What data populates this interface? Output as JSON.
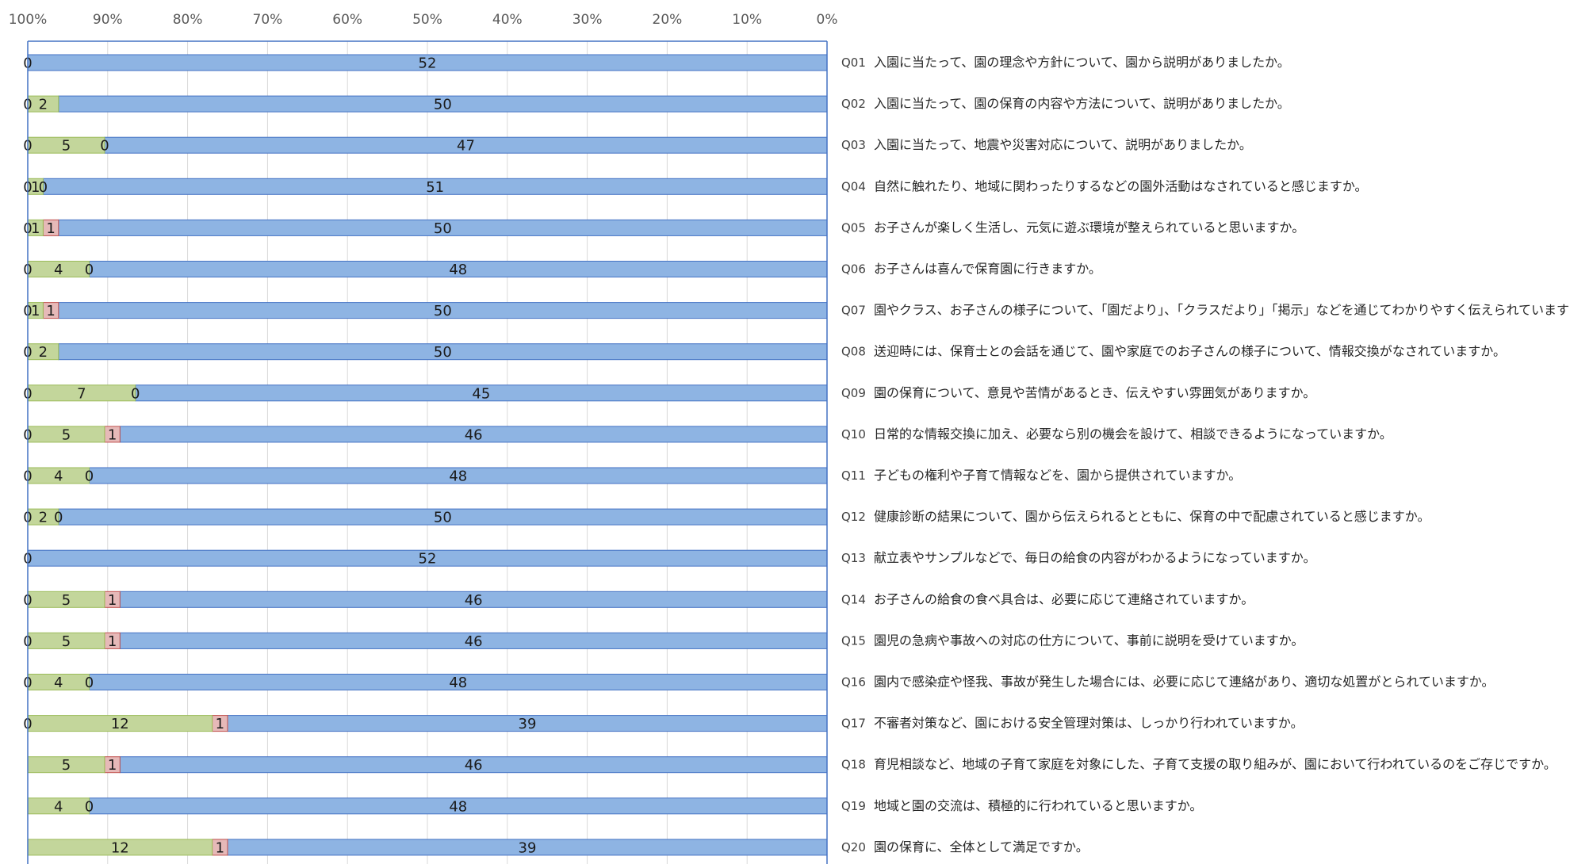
{
  "chart_data": {
    "type": "bar",
    "orientation": "horizontal",
    "stacked": "percent",
    "x_axis_reversed": true,
    "xlim": [
      0,
      100
    ],
    "x_ticks": [
      "100%",
      "90%",
      "80%",
      "70%",
      "60%",
      "50%",
      "40%",
      "30%",
      "20%",
      "10%",
      "0%"
    ],
    "grid": true,
    "legend": null,
    "categories": [
      {
        "id": "Q01",
        "text": "入園に当たって、園の理念や方針について、園から説明がありましたか。"
      },
      {
        "id": "Q02",
        "text": "入園に当たって、園の保育の内容や方法について、説明がありましたか。"
      },
      {
        "id": "Q03",
        "text": "入園に当たって、地震や災害対応について、説明がありましたか。"
      },
      {
        "id": "Q04",
        "text": "自然に触れたり、地域に関わったりするなどの園外活動はなされていると感じますか。"
      },
      {
        "id": "Q05",
        "text": "お子さんが楽しく生活し、元気に遊ぶ環境が整えられていると思いますか。"
      },
      {
        "id": "Q06",
        "text": "お子さんは喜んで保育園に行きますか。"
      },
      {
        "id": "Q07",
        "text": "園やクラス、お子さんの様子について、「園だより」、「クラスだより」「掲示」などを通じてわかりやすく伝えられていますか。"
      },
      {
        "id": "Q08",
        "text": "送迎時には、保育士との会話を通じて、園や家庭でのお子さんの様子について、情報交換がなされていますか。"
      },
      {
        "id": "Q09",
        "text": "園の保育について、意見や苦情があるとき、伝えやすい雰囲気がありますか。"
      },
      {
        "id": "Q10",
        "text": "日常的な情報交換に加え、必要なら別の機会を設けて、相談できるようになっていますか。"
      },
      {
        "id": "Q11",
        "text": "子どもの権利や子育て情報などを、園から提供されていますか。"
      },
      {
        "id": "Q12",
        "text": "健康診断の結果について、園から伝えられるとともに、保育の中で配慮されていると感じますか。"
      },
      {
        "id": "Q13",
        "text": "献立表やサンプルなどで、毎日の給食の内容がわかるようになっていますか。"
      },
      {
        "id": "Q14",
        "text": "お子さんの給食の食べ具合は、必要に応じて連絡されていますか。"
      },
      {
        "id": "Q15",
        "text": "園児の急病や事故への対応の仕方について、事前に説明を受けていますか。"
      },
      {
        "id": "Q16",
        "text": "園内で感染症や怪我、事故が発生した場合には、必要に応じて連絡があり、適切な処置がとられていますか。"
      },
      {
        "id": "Q17",
        "text": "不審者対策など、園における安全管理対策は、しっかり行われていますか。"
      },
      {
        "id": "Q18",
        "text": "育児相談など、地域の子育て家庭を対象にした、子育て支援の取り組みが、園において行われているのをご存じですか。"
      },
      {
        "id": "Q19",
        "text": "地域と園の交流は、積極的に行われていると思いますか。"
      },
      {
        "id": "Q20",
        "text": "園の保育に、全体として満足ですか。"
      }
    ],
    "series": [
      {
        "color": "#8EB4E3",
        "values": [
          52,
          50,
          47,
          51,
          50,
          48,
          50,
          50,
          45,
          46,
          48,
          50,
          52,
          46,
          46,
          48,
          39,
          46,
          48,
          39
        ]
      },
      {
        "color": "#E6B9B8",
        "values": [
          null,
          null,
          0,
          0,
          1,
          0,
          1,
          null,
          0,
          1,
          0,
          0,
          null,
          1,
          1,
          0,
          1,
          1,
          0,
          1
        ]
      },
      {
        "color": "#C3D69B",
        "values": [
          null,
          2,
          5,
          1,
          1,
          4,
          1,
          2,
          7,
          5,
          4,
          2,
          null,
          5,
          5,
          4,
          12,
          5,
          4,
          12
        ]
      },
      {
        "color": "#C3D69B",
        "values": [
          0,
          0,
          0,
          0,
          0,
          0,
          0,
          0,
          0,
          0,
          0,
          0,
          0,
          0,
          0,
          0,
          0,
          null,
          null,
          null
        ]
      }
    ]
  }
}
